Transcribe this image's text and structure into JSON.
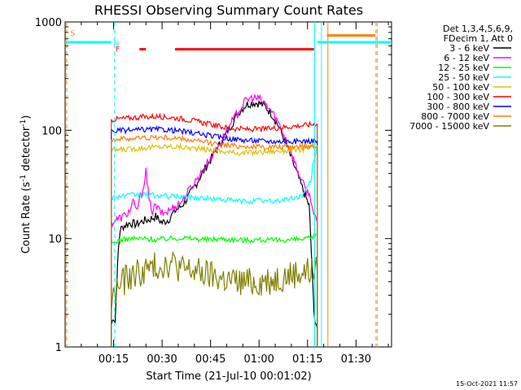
{
  "chart_data": {
    "type": "line",
    "title": "RHESSI Observing Summary Count Rates",
    "xlabel": "Start Time (21-Jul-10 00:01:02)",
    "ylabel_main": "Count Rate (s",
    "ylabel_sup": "-1",
    "ylabel_mid": " detector",
    "ylabel_tail": ")",
    "yscale": "log",
    "ylim": [
      1,
      1000
    ],
    "xlim_minutes": [
      0,
      101
    ],
    "x_ticks": [
      {
        "t": 15,
        "label": "00:15"
      },
      {
        "t": 30,
        "label": "00:30"
      },
      {
        "t": 45,
        "label": "00:45"
      },
      {
        "t": 60,
        "label": "01:00"
      },
      {
        "t": 75,
        "label": "01:15"
      },
      {
        "t": 90,
        "label": "01:30"
      }
    ],
    "y_ticks": [
      {
        "v": 1,
        "label": "1"
      },
      {
        "v": 10,
        "label": "10"
      },
      {
        "v": 100,
        "label": "100"
      },
      {
        "v": 1000,
        "label": "1000"
      }
    ],
    "legend": {
      "position": "right",
      "header_line1": "Det 1,3,4,5,6,9,",
      "header_line2": "FDecim 1, Att 0"
    },
    "series": [
      {
        "name": "3 - 6 keV",
        "color": "#000000",
        "t": [
          14.3,
          15,
          15.5,
          16,
          16.5,
          17,
          18,
          20,
          22,
          24,
          26,
          28,
          30,
          32,
          34,
          36,
          38,
          40,
          42,
          44,
          46,
          48,
          50,
          52,
          54,
          56,
          58,
          60,
          62,
          64,
          66,
          68,
          70,
          72,
          74,
          75.5,
          76,
          77,
          78
        ],
        "v": [
          1.6,
          1.9,
          1.7,
          4,
          8,
          12,
          13,
          14,
          13.5,
          14.5,
          15,
          16,
          14,
          15,
          18,
          20,
          24,
          30,
          38,
          48,
          60,
          75,
          95,
          120,
          150,
          172,
          180,
          178,
          165,
          140,
          110,
          80,
          55,
          38,
          26,
          20,
          10,
          2,
          1.5
        ]
      },
      {
        "name": "6 - 12 keV",
        "color": "#ff00ff",
        "t": [
          14.3,
          16,
          18,
          20,
          21,
          22,
          24,
          25,
          26,
          27,
          28,
          30,
          32,
          34,
          36,
          38,
          40,
          42,
          44,
          46,
          48,
          50,
          52,
          54,
          56,
          58,
          60,
          62,
          64,
          66,
          68,
          70,
          72,
          74,
          76,
          77,
          78
        ],
        "v": [
          14,
          15,
          16,
          18,
          22,
          18,
          28,
          42,
          22,
          18,
          20,
          17,
          18,
          20,
          22,
          27,
          33,
          40,
          50,
          62,
          78,
          98,
          125,
          155,
          190,
          200,
          195,
          175,
          148,
          118,
          88,
          62,
          42,
          30,
          24,
          16,
          14
        ]
      },
      {
        "name": "12 - 25 keV",
        "color": "#00ff00",
        "t": [
          14.3,
          16,
          20,
          24,
          28,
          32,
          36,
          40,
          44,
          48,
          52,
          56,
          60,
          64,
          68,
          72,
          76,
          78
        ],
        "v": [
          9,
          9.5,
          10,
          10,
          9.8,
          10,
          10.2,
          10,
          9.8,
          10,
          9.8,
          9.7,
          9.8,
          9.6,
          9.7,
          9.8,
          10,
          11
        ]
      },
      {
        "name": "25 - 50 keV",
        "color": "#00ffff",
        "t": [
          14.3,
          16,
          20,
          24,
          28,
          32,
          36,
          40,
          44,
          48,
          52,
          56,
          60,
          64,
          68,
          72,
          74,
          76,
          77,
          78
        ],
        "v": [
          24,
          24.5,
          25,
          25.5,
          25,
          24.5,
          24.5,
          24,
          23.5,
          23,
          22.5,
          22,
          22.5,
          22,
          23,
          24,
          26,
          34,
          55,
          70
        ]
      },
      {
        "name": "50 - 100 keV",
        "color": "#dfc000",
        "t": [
          14.3,
          16,
          20,
          24,
          28,
          32,
          36,
          40,
          44,
          48,
          52,
          56,
          60,
          64,
          68,
          72,
          76,
          78
        ],
        "v": [
          65,
          66,
          67,
          69,
          70,
          71,
          70,
          68,
          66,
          64,
          62,
          62,
          63,
          64,
          65,
          66,
          68,
          70
        ]
      },
      {
        "name": "100 - 300 keV",
        "color": "#ff0000",
        "t": [
          14.3,
          16,
          20,
          24,
          28,
          32,
          36,
          40,
          44,
          48,
          52,
          56,
          60,
          64,
          68,
          72,
          76,
          78
        ],
        "v": [
          125,
          127,
          130,
          133,
          134,
          132,
          128,
          122,
          115,
          108,
          104,
          102,
          102,
          104,
          107,
          110,
          113,
          115
        ]
      },
      {
        "name": "300 - 800 keV",
        "color": "#0000ff",
        "t": [
          14.3,
          16,
          20,
          24,
          28,
          32,
          36,
          40,
          44,
          48,
          52,
          56,
          60,
          64,
          68,
          72,
          76,
          78
        ],
        "v": [
          98,
          99,
          100,
          101,
          102,
          101,
          98,
          94,
          90,
          86,
          83,
          81,
          80,
          79,
          79,
          79,
          80,
          80
        ]
      },
      {
        "name": "800 - 7000 keV",
        "color": "#ff8000",
        "t": [
          14.3,
          16,
          20,
          24,
          28,
          32,
          36,
          40,
          44,
          48,
          52,
          56,
          60,
          64,
          68,
          72,
          76,
          78
        ],
        "v": [
          82,
          83,
          84,
          85,
          86,
          85,
          83,
          80,
          77,
          74,
          72,
          71,
          70,
          70,
          70,
          71,
          72,
          73
        ]
      },
      {
        "name": "7000 - 15000 keV",
        "color": "#808000",
        "t": [
          14.3,
          16,
          18,
          20,
          24,
          28,
          32,
          34,
          36,
          40,
          44,
          48,
          52,
          56,
          60,
          64,
          68,
          72,
          76,
          78
        ],
        "v": [
          2.5,
          3.5,
          4,
          4.5,
          5,
          5.5,
          6,
          5.8,
          5.2,
          5,
          4.6,
          4.3,
          4,
          3.9,
          4,
          4.2,
          4.5,
          4.8,
          5,
          5
        ]
      }
    ],
    "annotations": [
      {
        "label": "S",
        "color": "#ff8000"
      },
      {
        "label": "N",
        "color": "#00ffff"
      },
      {
        "label": "F",
        "color": "#ff0000"
      }
    ],
    "attenuator_levels": [
      {
        "color": "#00ffff",
        "segments": [
          [
            0,
            14.3
          ],
          [
            78,
            101
          ]
        ],
        "level": 650
      },
      {
        "color": "#ff8000",
        "segments": [
          [
            81,
            96
          ]
        ],
        "level": 750
      }
    ],
    "flare_flag": {
      "color": "#ff0000",
      "level": 560,
      "segments": [
        [
          23,
          25
        ],
        [
          34,
          77
        ]
      ]
    },
    "vertical_markers": [
      {
        "t": 0.5,
        "color": "#ff8000",
        "style": "dashed"
      },
      {
        "t": 15.3,
        "color": "#00ffff",
        "style": "dashed"
      },
      {
        "t": 77.2,
        "color": "#00ffff",
        "style": "solid"
      },
      {
        "t": 79.3,
        "color": "#00ffff",
        "style": "solid"
      },
      {
        "t": 81.3,
        "color": "#ff8000",
        "style": "solid"
      },
      {
        "t": 96.2,
        "color": "#ff8000",
        "style": "dashed"
      },
      {
        "t": 96.6,
        "color": "#00ffff",
        "style": "dashed"
      }
    ]
  },
  "footer_timestamp": "15-Oct-2021 11:57"
}
